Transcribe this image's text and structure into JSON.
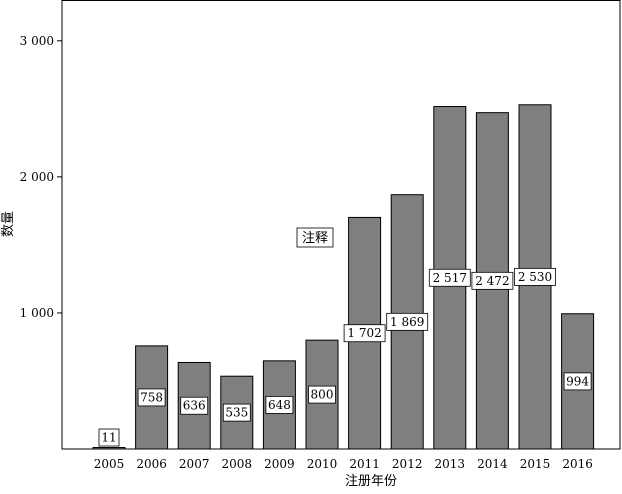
{
  "chart_data": {
    "type": "bar",
    "title": "",
    "xlabel": "注册年份",
    "ylabel": "数量",
    "categories": [
      "2005",
      "2006",
      "2007",
      "2008",
      "2009",
      "2010",
      "2011",
      "2012",
      "2013",
      "2014",
      "2015",
      "2016"
    ],
    "values": [
      11,
      758,
      636,
      535,
      648,
      800,
      1702,
      1869,
      2517,
      2472,
      2530,
      994
    ],
    "data_labels": [
      "11",
      "758",
      "636",
      "535",
      "648",
      "800",
      "1 702",
      "1 869",
      "2 517",
      "2 472",
      "2 530",
      "994"
    ],
    "yticks": [
      1000,
      2000,
      3000
    ],
    "ytick_labels": [
      "1 000",
      "2 000",
      "3 000"
    ],
    "ylim": [
      0,
      3300
    ],
    "grid": false,
    "bar_color": "#7f7f7f",
    "annotation": "注释"
  }
}
